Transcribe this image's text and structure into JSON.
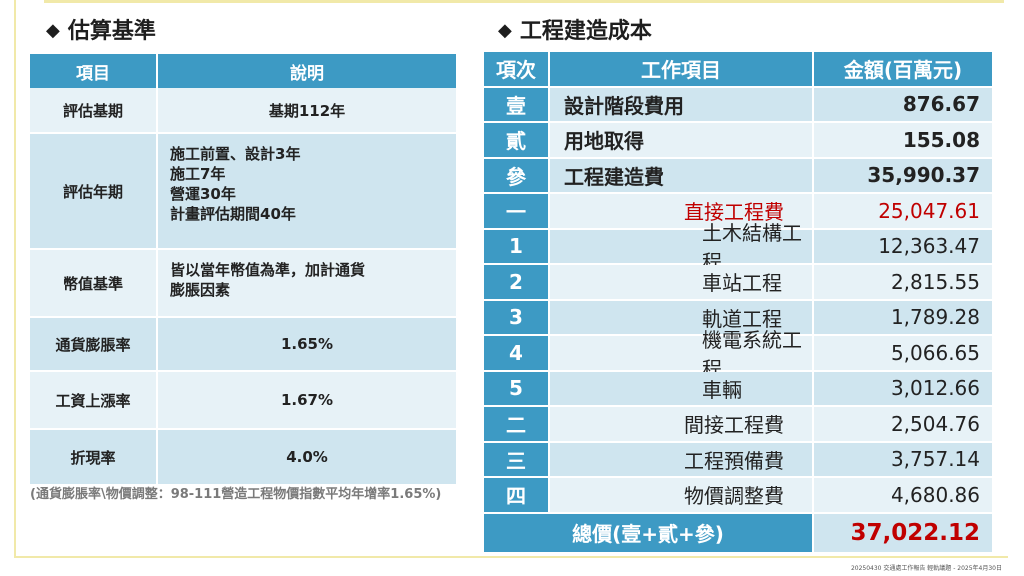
{
  "left": {
    "heading": "估算基準",
    "table": {
      "headers": [
        "項目",
        "說明"
      ],
      "rows": [
        {
          "item": "評估基期",
          "desc": "基期112年"
        },
        {
          "item": "評估年期",
          "lines": [
            "施工前置、設計3年",
            "施工7年",
            "營運30年",
            "計畫評估期間40年"
          ]
        },
        {
          "item": "幣值基準",
          "lines": [
            "皆以當年幣值為準，加計通貨",
            "膨脹因素"
          ]
        },
        {
          "item": "通貨膨脹率",
          "desc": "1.65%"
        },
        {
          "item": "工資上漲率",
          "desc": "1.67%"
        },
        {
          "item": "折現率",
          "desc": "4.0%"
        }
      ]
    },
    "footnote": "(通貨膨脹率\\物價調整：98-111營造工程物價指數平均年增率1.65%)"
  },
  "right": {
    "heading": "工程建造成本",
    "headers": [
      "項次",
      "工作項目",
      "金額(百萬元)"
    ],
    "rows": [
      {
        "no": "壹",
        "name": "設計階段費用",
        "amount": "876.67"
      },
      {
        "no": "貳",
        "name": "用地取得",
        "amount": "155.08"
      },
      {
        "no": "參",
        "name": "工程建造費",
        "amount": "35,990.37"
      },
      {
        "no": "一",
        "name": "直接工程費",
        "amount": "25,047.61"
      },
      {
        "no": "1",
        "name": "土木結構工程",
        "amount": "12,363.47"
      },
      {
        "no": "2",
        "name": "車站工程",
        "amount": "2,815.55"
      },
      {
        "no": "3",
        "name": "軌道工程",
        "amount": "1,789.28"
      },
      {
        "no": "4",
        "name": "機電系統工程",
        "amount": "5,066.65"
      },
      {
        "no": "5",
        "name": "車輛",
        "amount": "3,012.66"
      },
      {
        "no": "二",
        "name": "間接工程費",
        "amount": "2,504.76"
      },
      {
        "no": "三",
        "name": "工程預備費",
        "amount": "3,757.14"
      },
      {
        "no": "四",
        "name": "物價調整費",
        "amount": "4,680.86"
      }
    ],
    "total": {
      "label": "總價(壹+貳+參)",
      "amount": "37,022.12"
    }
  },
  "credit": "20250430 交通處工作報告 輕軌議題 - 2025年4月30日"
}
